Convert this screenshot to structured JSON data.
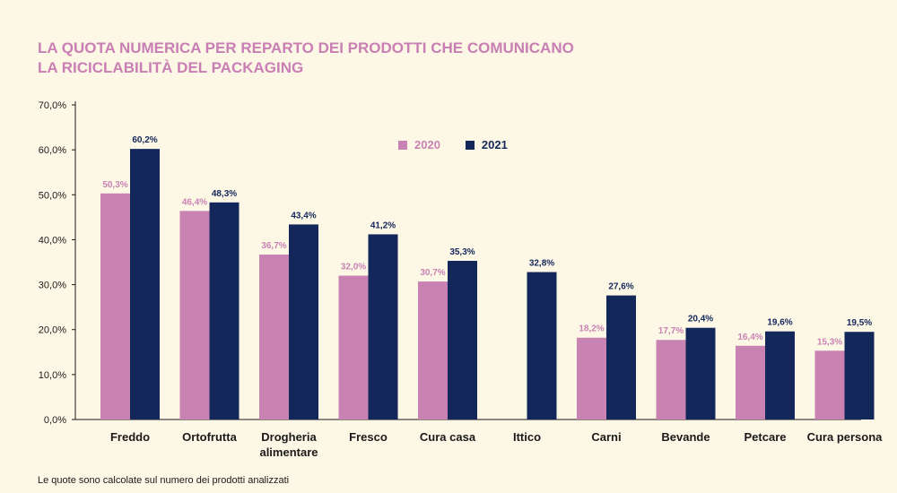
{
  "header": {
    "title_line1": "LA QUOTA NUMERICA PER REPARTO DEI PRODOTTI CHE COMUNICANO",
    "title_line2": "LA RICICLABILITÀ DEL PACKAGING"
  },
  "footnote": "Le quote sono calcolate sul numero dei prodotti analizzati",
  "colors": {
    "series_2020": "#c983b3",
    "series_2021": "#13275b",
    "axis": "#1a1a1a"
  },
  "chart_data": {
    "type": "bar",
    "categories": [
      "Freddo",
      "Ortofrutta",
      "Drogheria alimentare",
      "Fresco",
      "Cura casa",
      "Ittico",
      "Carni",
      "Bevande",
      "Petcare",
      "Cura persona"
    ],
    "series": [
      {
        "name": "2020",
        "values": [
          50.3,
          46.4,
          36.7,
          32.0,
          30.7,
          null,
          18.2,
          17.7,
          16.4,
          15.3
        ],
        "labels": [
          "50,3%",
          "46,4%",
          "36,7%",
          "32,0%",
          "30,7%",
          null,
          "18,2%",
          "17,7%",
          "16,4%",
          "15,3%"
        ]
      },
      {
        "name": "2021",
        "values": [
          60.2,
          48.3,
          43.4,
          41.2,
          35.3,
          32.8,
          27.6,
          20.4,
          19.6,
          19.5
        ],
        "labels": [
          "60,2%",
          "48,3%",
          "43,4%",
          "41,2%",
          "35,3%",
          "32,8%",
          "27,6%",
          "20,4%",
          "19,6%",
          "19,5%"
        ]
      }
    ],
    "ylim": [
      0,
      70
    ],
    "yticks": [
      0,
      10,
      20,
      30,
      40,
      50,
      60,
      70
    ],
    "ytick_labels": [
      "0,0%",
      "10,0%",
      "20,0%",
      "30,0%",
      "40,0%",
      "50,0%",
      "60,0%",
      "70,0%"
    ],
    "legend_position": "top-center",
    "grid": false
  }
}
